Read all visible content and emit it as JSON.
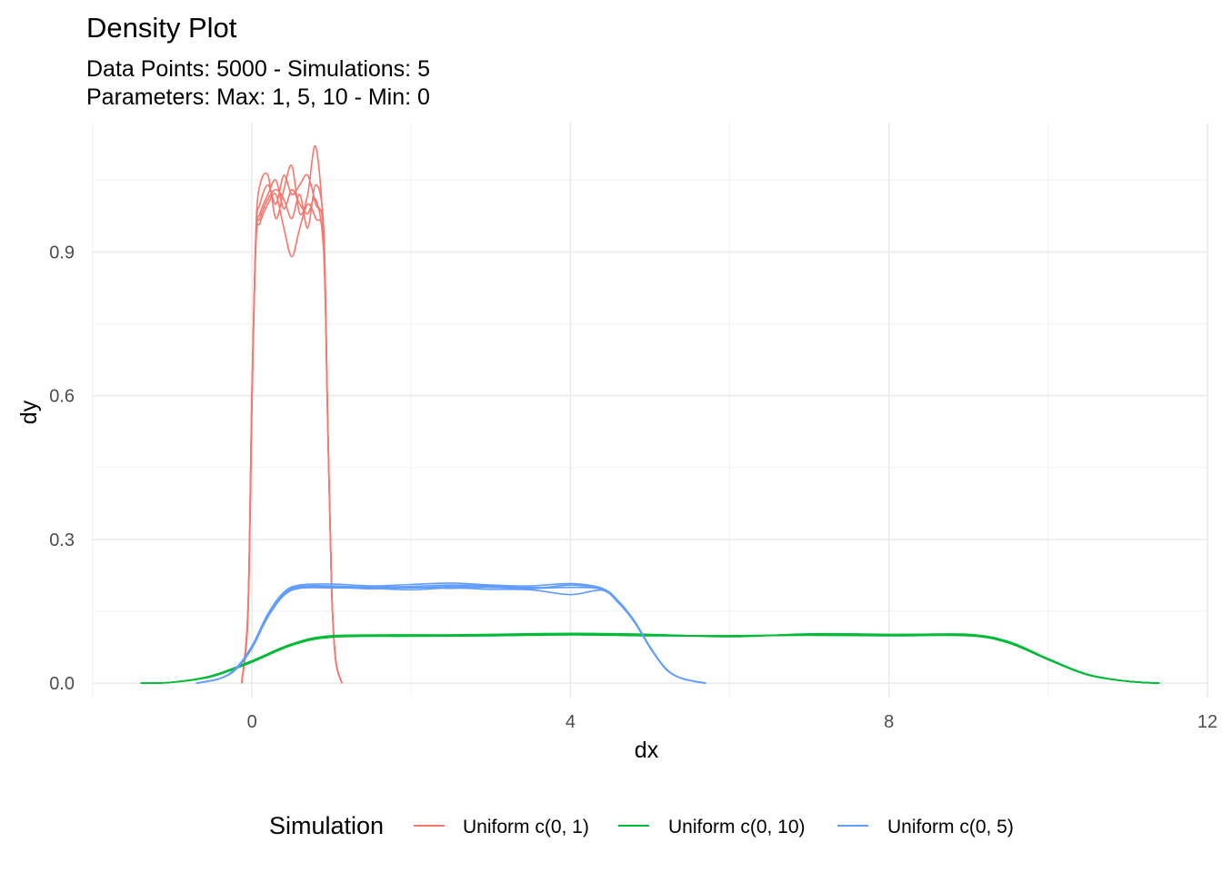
{
  "chart_data": {
    "type": "line",
    "title": "Density Plot",
    "subtitle_lines": [
      "Data Points: 5000 - Simulations: 5",
      "Parameters: Max: 1, 5, 10 - Min: 0"
    ],
    "xlabel": "dx",
    "ylabel": "dy",
    "xlim": [
      -2,
      12
    ],
    "ylim": [
      -0.03,
      1.17
    ],
    "x_ticks": [
      0,
      4,
      8,
      12
    ],
    "x_tick_labels": [
      "0",
      "4",
      "8",
      "12"
    ],
    "y_ticks": [
      0.0,
      0.3,
      0.6,
      0.9
    ],
    "y_tick_labels": [
      "0.0",
      "0.3",
      "0.6",
      "0.9"
    ],
    "grid": true,
    "legend": {
      "title": "Simulation",
      "position": "bottom",
      "entries": [
        "Uniform c(0, 1)",
        "Uniform c(0, 10)",
        "Uniform c(0, 5)"
      ]
    },
    "series": [
      {
        "name": "Uniform c(0, 1)",
        "color": "#F8766D",
        "runs": [
          {
            "x": [
              -0.13,
              -0.05,
              0.0,
              0.05,
              0.1,
              0.2,
              0.3,
              0.4,
              0.5,
              0.6,
              0.7,
              0.8,
              0.9,
              0.95,
              1.0,
              1.05,
              1.13
            ],
            "y": [
              0.0,
              0.15,
              0.6,
              0.93,
              0.98,
              1.02,
              1.05,
              0.99,
              1.03,
              1.0,
              0.98,
              1.01,
              0.9,
              0.55,
              0.2,
              0.05,
              0.0
            ]
          },
          {
            "x": [
              -0.13,
              -0.05,
              0.0,
              0.05,
              0.1,
              0.2,
              0.3,
              0.4,
              0.5,
              0.6,
              0.7,
              0.8,
              0.9,
              0.95,
              1.0,
              1.05,
              1.13
            ],
            "y": [
              0.0,
              0.16,
              0.62,
              0.95,
              1.04,
              1.06,
              0.97,
              1.03,
              1.08,
              0.98,
              1.02,
              1.12,
              0.93,
              0.56,
              0.2,
              0.05,
              0.0
            ]
          },
          {
            "x": [
              -0.13,
              -0.05,
              0.0,
              0.05,
              0.1,
              0.2,
              0.3,
              0.4,
              0.5,
              0.6,
              0.7,
              0.8,
              0.9,
              0.95,
              1.0,
              1.05,
              1.13
            ],
            "y": [
              0.0,
              0.14,
              0.58,
              0.92,
              0.96,
              1.0,
              1.02,
              0.95,
              0.89,
              0.95,
              1.0,
              0.97,
              0.92,
              0.55,
              0.2,
              0.05,
              0.0
            ]
          },
          {
            "x": [
              -0.13,
              -0.05,
              0.0,
              0.05,
              0.1,
              0.2,
              0.3,
              0.4,
              0.5,
              0.6,
              0.7,
              0.8,
              0.9,
              0.95,
              1.0,
              1.05,
              1.13
            ],
            "y": [
              0.0,
              0.15,
              0.6,
              0.94,
              1.0,
              1.04,
              1.0,
              1.06,
              1.02,
              1.04,
              1.06,
              1.0,
              0.94,
              0.56,
              0.2,
              0.05,
              0.0
            ]
          },
          {
            "x": [
              -0.13,
              -0.05,
              0.0,
              0.05,
              0.1,
              0.2,
              0.3,
              0.4,
              0.5,
              0.6,
              0.7,
              0.8,
              0.9,
              0.95,
              1.0,
              1.05,
              1.13
            ],
            "y": [
              0.0,
              0.15,
              0.61,
              0.93,
              0.97,
              1.01,
              1.03,
              1.01,
              0.97,
              1.02,
              0.95,
              1.04,
              0.95,
              0.56,
              0.2,
              0.05,
              0.0
            ]
          }
        ]
      },
      {
        "name": "Uniform c(0, 10)",
        "color": "#00BA38",
        "runs": [
          {
            "x": [
              -1.4,
              -1.0,
              -0.5,
              0.0,
              0.5,
              1.0,
              2.0,
              3.0,
              4.0,
              5.0,
              6.0,
              7.0,
              8.0,
              9.0,
              9.5,
              10.0,
              10.5,
              11.0,
              11.4
            ],
            "y": [
              0.0,
              0.002,
              0.015,
              0.045,
              0.08,
              0.097,
              0.099,
              0.101,
              0.103,
              0.1,
              0.098,
              0.101,
              0.1,
              0.1,
              0.085,
              0.05,
              0.018,
              0.004,
              0.0
            ]
          },
          {
            "x": [
              -1.4,
              -1.0,
              -0.5,
              0.0,
              0.5,
              1.0,
              2.0,
              3.0,
              4.0,
              5.0,
              6.0,
              7.0,
              8.0,
              9.0,
              9.5,
              10.0,
              10.5,
              11.0,
              11.4
            ],
            "y": [
              0.0,
              0.002,
              0.016,
              0.047,
              0.082,
              0.099,
              0.1,
              0.102,
              0.104,
              0.102,
              0.097,
              0.103,
              0.102,
              0.101,
              0.087,
              0.051,
              0.018,
              0.004,
              0.0
            ]
          },
          {
            "x": [
              -1.4,
              -1.0,
              -0.5,
              0.0,
              0.5,
              1.0,
              2.0,
              3.0,
              4.0,
              5.0,
              6.0,
              7.0,
              8.0,
              9.0,
              9.5,
              10.0,
              10.5,
              11.0,
              11.4
            ],
            "y": [
              0.0,
              0.002,
              0.014,
              0.044,
              0.079,
              0.096,
              0.098,
              0.099,
              0.101,
              0.099,
              0.099,
              0.1,
              0.099,
              0.099,
              0.084,
              0.049,
              0.017,
              0.004,
              0.0
            ]
          },
          {
            "x": [
              -1.4,
              -1.0,
              -0.5,
              0.0,
              0.5,
              1.0,
              2.0,
              3.0,
              4.0,
              5.0,
              6.0,
              7.0,
              8.0,
              9.0,
              9.5,
              10.0,
              10.5,
              11.0,
              11.4
            ],
            "y": [
              0.0,
              0.002,
              0.015,
              0.046,
              0.081,
              0.098,
              0.101,
              0.1,
              0.102,
              0.101,
              0.098,
              0.102,
              0.101,
              0.102,
              0.086,
              0.05,
              0.018,
              0.004,
              0.0
            ]
          },
          {
            "x": [
              -1.4,
              -1.0,
              -0.5,
              0.0,
              0.5,
              1.0,
              2.0,
              3.0,
              4.0,
              5.0,
              6.0,
              7.0,
              8.0,
              9.0,
              9.5,
              10.0,
              10.5,
              11.0,
              11.4
            ],
            "y": [
              0.0,
              0.002,
              0.015,
              0.045,
              0.08,
              0.097,
              0.1,
              0.1,
              0.103,
              0.1,
              0.099,
              0.101,
              0.1,
              0.1,
              0.085,
              0.05,
              0.018,
              0.004,
              0.0
            ]
          }
        ]
      },
      {
        "name": "Uniform c(0, 5)",
        "color": "#619CFF",
        "runs": [
          {
            "x": [
              -0.7,
              -0.4,
              -0.2,
              0.0,
              0.2,
              0.4,
              0.6,
              1.0,
              1.5,
              2.0,
              2.5,
              3.0,
              3.5,
              4.0,
              4.4,
              4.6,
              4.8,
              5.0,
              5.2,
              5.4,
              5.7
            ],
            "y": [
              0.0,
              0.01,
              0.03,
              0.075,
              0.14,
              0.185,
              0.2,
              0.2,
              0.201,
              0.199,
              0.202,
              0.2,
              0.198,
              0.2,
              0.196,
              0.17,
              0.13,
              0.075,
              0.03,
              0.01,
              0.0
            ]
          },
          {
            "x": [
              -0.7,
              -0.4,
              -0.2,
              0.0,
              0.2,
              0.4,
              0.6,
              1.0,
              1.5,
              2.0,
              2.5,
              3.0,
              3.5,
              4.0,
              4.4,
              4.6,
              4.8,
              5.0,
              5.2,
              5.4,
              5.7
            ],
            "y": [
              0.0,
              0.01,
              0.032,
              0.078,
              0.145,
              0.19,
              0.205,
              0.207,
              0.203,
              0.206,
              0.209,
              0.205,
              0.203,
              0.208,
              0.198,
              0.172,
              0.131,
              0.076,
              0.03,
              0.01,
              0.0
            ]
          },
          {
            "x": [
              -0.7,
              -0.4,
              -0.2,
              0.0,
              0.2,
              0.4,
              0.6,
              1.0,
              1.5,
              2.0,
              2.5,
              3.0,
              3.5,
              4.0,
              4.4,
              4.6,
              4.8,
              5.0,
              5.2,
              5.4,
              5.7
            ],
            "y": [
              0.0,
              0.01,
              0.029,
              0.073,
              0.138,
              0.183,
              0.198,
              0.199,
              0.198,
              0.195,
              0.199,
              0.196,
              0.195,
              0.185,
              0.194,
              0.168,
              0.128,
              0.074,
              0.029,
              0.01,
              0.0
            ]
          },
          {
            "x": [
              -0.7,
              -0.4,
              -0.2,
              0.0,
              0.2,
              0.4,
              0.6,
              1.0,
              1.5,
              2.0,
              2.5,
              3.0,
              3.5,
              4.0,
              4.4,
              4.6,
              4.8,
              5.0,
              5.2,
              5.4,
              5.7
            ],
            "y": [
              0.0,
              0.01,
              0.031,
              0.076,
              0.142,
              0.187,
              0.202,
              0.203,
              0.2,
              0.202,
              0.205,
              0.203,
              0.2,
              0.2,
              0.197,
              0.171,
              0.13,
              0.075,
              0.03,
              0.01,
              0.0
            ]
          },
          {
            "x": [
              -0.7,
              -0.4,
              -0.2,
              0.0,
              0.2,
              0.4,
              0.6,
              1.0,
              1.5,
              2.0,
              2.5,
              3.0,
              3.5,
              4.0,
              4.4,
              4.6,
              4.8,
              5.0,
              5.2,
              5.4,
              5.7
            ],
            "y": [
              0.0,
              0.01,
              0.03,
              0.074,
              0.14,
              0.185,
              0.2,
              0.201,
              0.197,
              0.2,
              0.198,
              0.201,
              0.197,
              0.205,
              0.195,
              0.169,
              0.129,
              0.074,
              0.03,
              0.01,
              0.0
            ]
          }
        ]
      }
    ]
  }
}
